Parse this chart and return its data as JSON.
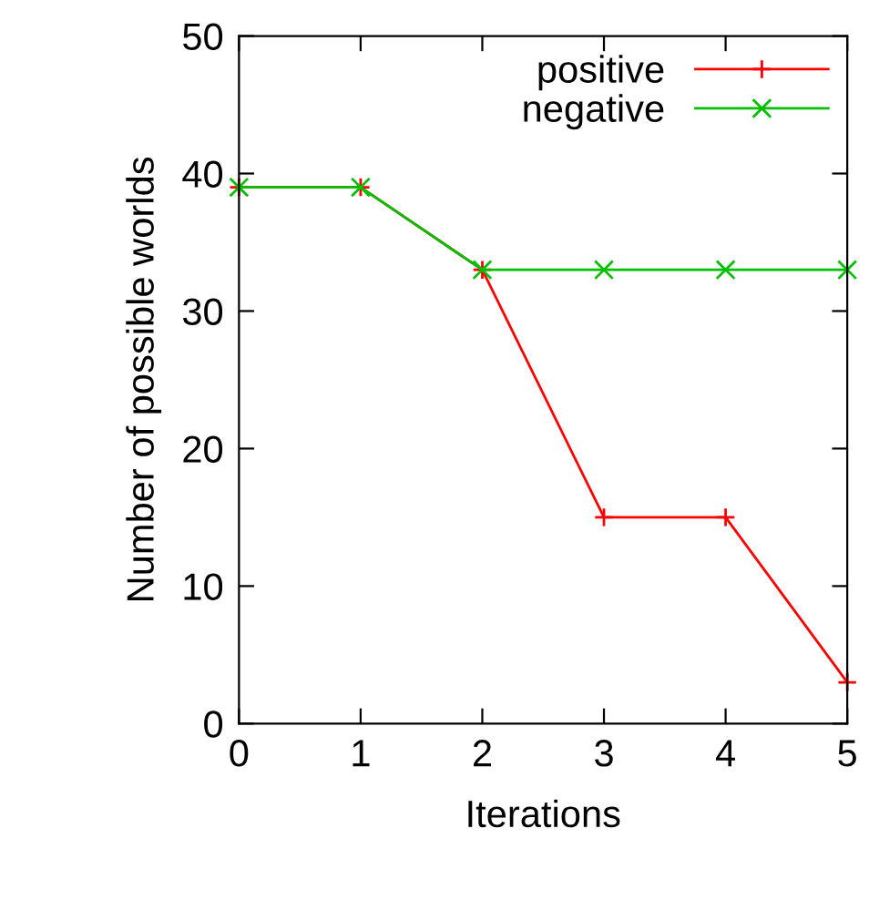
{
  "chart_data": {
    "type": "line",
    "xlabel": "Iterations",
    "ylabel": "Number of possible worlds",
    "x": [
      0,
      1,
      2,
      3,
      4,
      5
    ],
    "series": [
      {
        "name": "positive",
        "color": "#ff0000",
        "marker": "cross",
        "values": [
          39,
          39,
          33,
          15,
          15,
          3
        ]
      },
      {
        "name": "negative",
        "color": "#00c000",
        "marker": "x",
        "values": [
          39,
          39,
          33,
          33,
          33,
          33
        ]
      }
    ],
    "xlim": [
      0,
      5
    ],
    "ylim": [
      0,
      50
    ],
    "xticks": [
      0,
      1,
      2,
      3,
      4,
      5
    ],
    "yticks": [
      0,
      10,
      20,
      30,
      40,
      50
    ],
    "grid": false,
    "legend": "top right",
    "line_style": "solid"
  }
}
